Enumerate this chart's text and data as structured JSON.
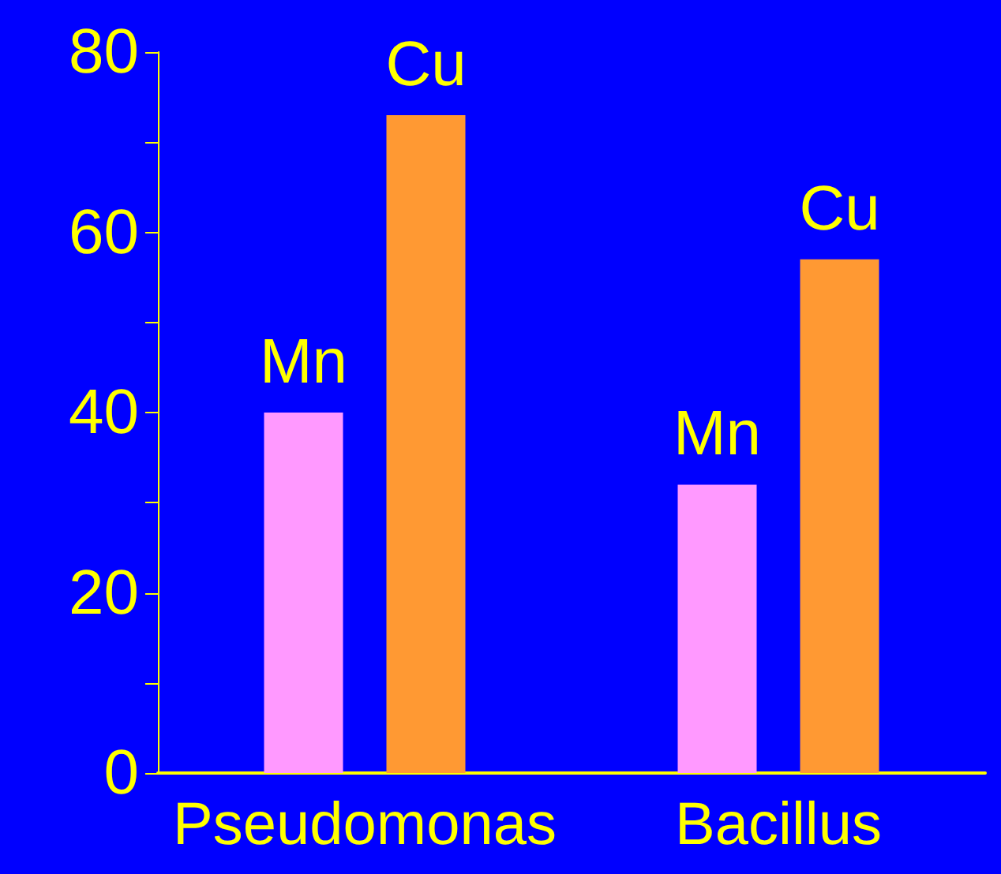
{
  "chart_data": {
    "type": "bar",
    "categories": [
      "Pseudomonas",
      "Bacillus"
    ],
    "series": [
      {
        "name": "Mn",
        "color": "#ff99ff",
        "values": [
          40,
          32
        ]
      },
      {
        "name": "Cu",
        "color": "#ff9933",
        "values": [
          73,
          57
        ]
      }
    ],
    "ylim": [
      0,
      80
    ],
    "yticks": [
      0,
      {
        "value": 10,
        "label": null
      },
      20,
      {
        "value": 30,
        "label": null
      },
      40,
      {
        "value": 50,
        "label": null
      },
      60,
      {
        "value": 70,
        "label": null
      },
      80
    ],
    "grid": false,
    "legend": false
  }
}
